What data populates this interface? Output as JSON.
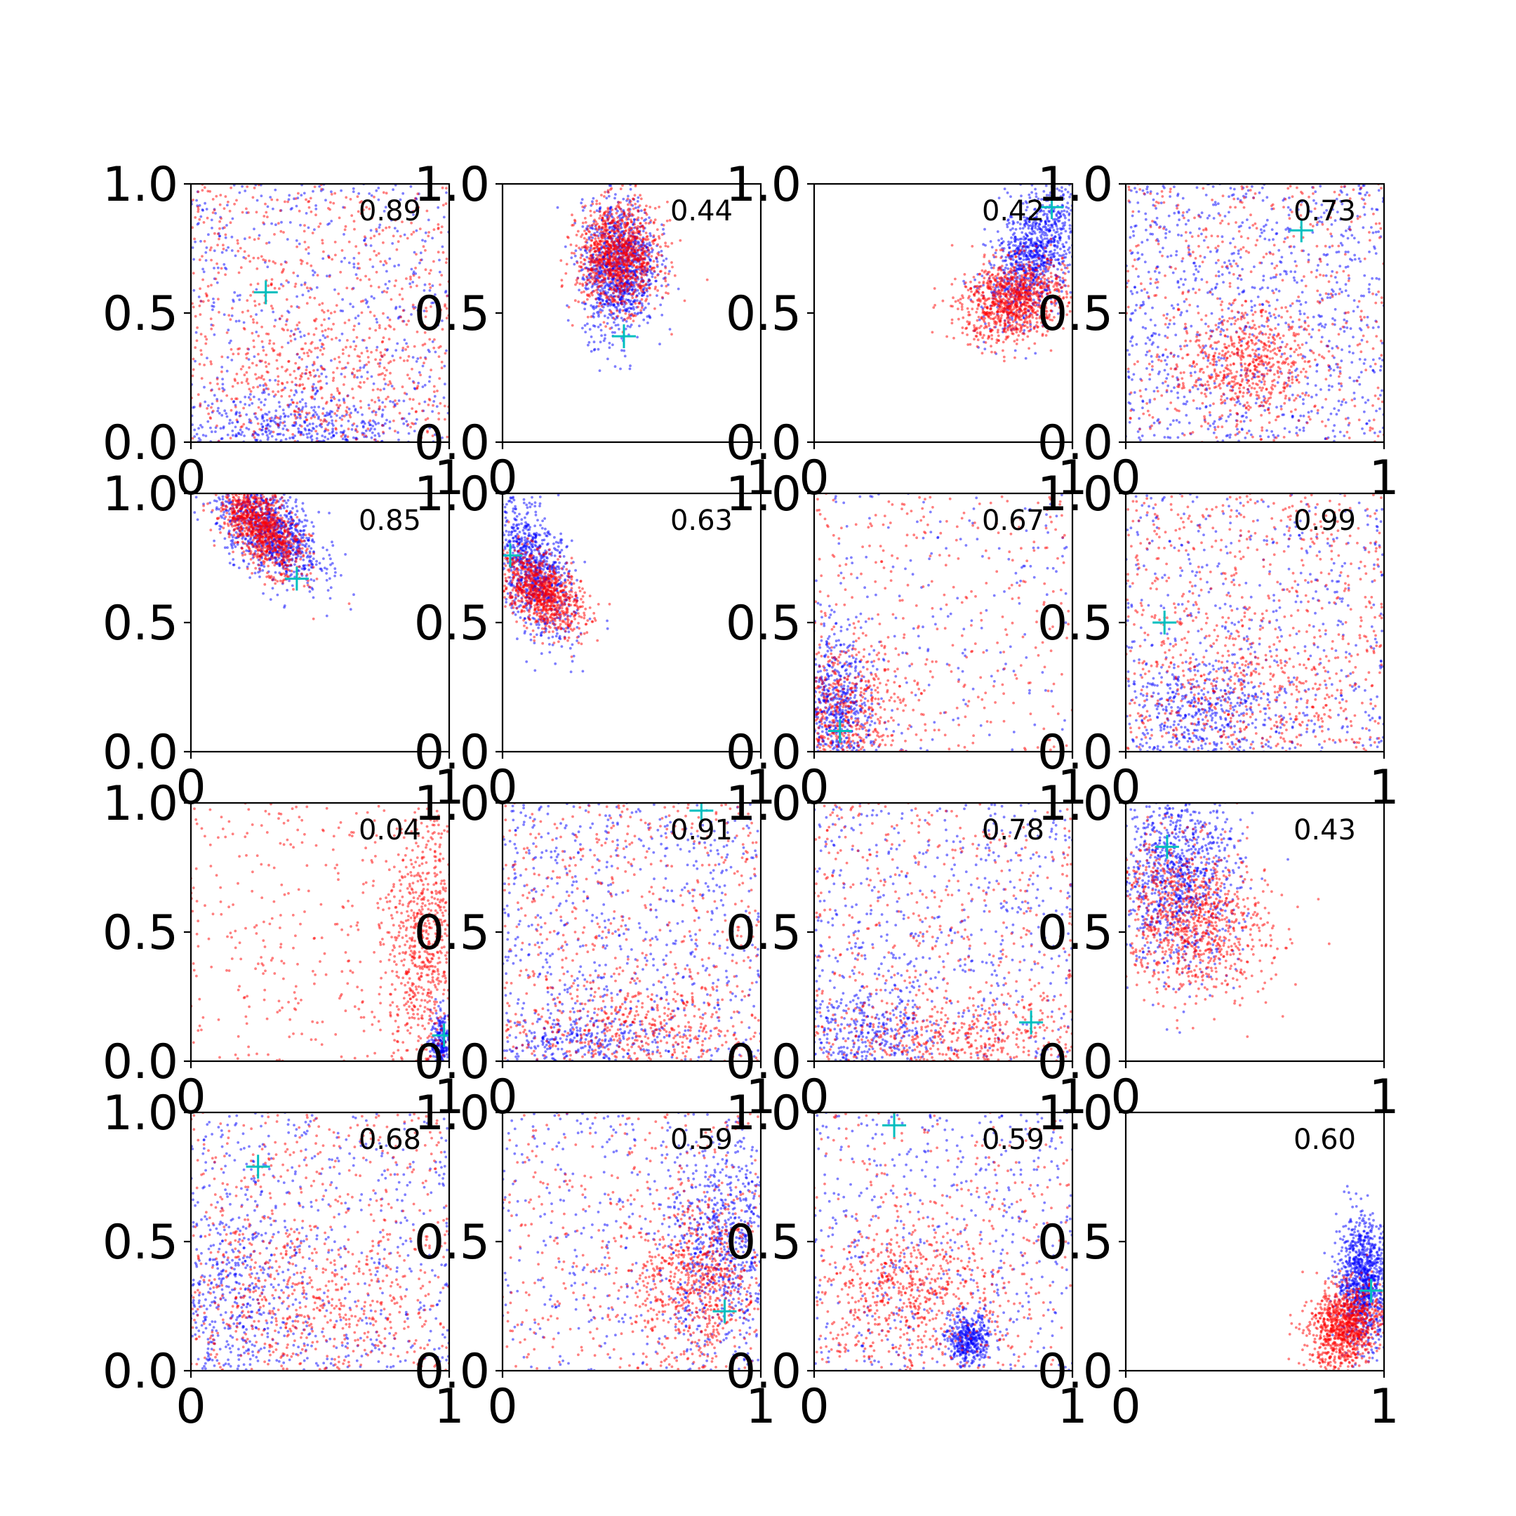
{
  "chart_data": {
    "type": "scatter",
    "layout": {
      "rows": 4,
      "cols": 4
    },
    "xlim": [
      0,
      1
    ],
    "ylim": [
      0,
      1
    ],
    "xticks": [
      "0",
      "1"
    ],
    "yticks": [
      "0.0",
      "0.5",
      "1.0"
    ],
    "colors": {
      "series_a": "#0000ff",
      "series_b": "#ff0000",
      "marker": "#00bfbf",
      "axes": "#000000"
    },
    "panels": [
      {
        "label": "0.89",
        "marker": [
          0.29,
          0.58
        ],
        "series_a": {
          "color": "#0000ff",
          "dist": "mixed",
          "cx": 0.42,
          "cy": 0.05,
          "sx": 0.22,
          "sy": 0.06,
          "rho": 0,
          "bg": 0.55,
          "n": 900
        },
        "series_b": {
          "color": "#ff0000",
          "dist": "mixed",
          "cx": 0.5,
          "cy": 0.25,
          "sx": 0.25,
          "sy": 0.15,
          "rho": 0,
          "bg": 0.7,
          "n": 900
        }
      },
      {
        "label": "0.44",
        "marker": [
          0.47,
          0.41
        ],
        "series_a": {
          "color": "#0000ff",
          "dist": "gauss",
          "cx": 0.45,
          "cy": 0.68,
          "sx": 0.07,
          "sy": 0.13,
          "rho": 0.1,
          "n": 1100
        },
        "series_b": {
          "color": "#ff0000",
          "dist": "gauss",
          "cx": 0.45,
          "cy": 0.72,
          "sx": 0.08,
          "sy": 0.1,
          "rho": 0,
          "n": 1100
        }
      },
      {
        "label": "0.42",
        "marker": [
          0.92,
          0.91
        ],
        "series_a": {
          "color": "#0000ff",
          "dist": "gauss",
          "cx": 0.85,
          "cy": 0.72,
          "sx": 0.09,
          "sy": 0.13,
          "rho": 0.5,
          "n": 1000
        },
        "series_b": {
          "color": "#ff0000",
          "dist": "gauss",
          "cx": 0.77,
          "cy": 0.55,
          "sx": 0.1,
          "sy": 0.08,
          "rho": 0.2,
          "n": 1000
        }
      },
      {
        "label": "0.73",
        "marker": [
          0.68,
          0.82
        ],
        "series_a": {
          "color": "#0000ff",
          "dist": "uniform",
          "n": 900
        },
        "series_b": {
          "color": "#ff0000",
          "dist": "mixed",
          "cx": 0.48,
          "cy": 0.3,
          "sx": 0.12,
          "sy": 0.1,
          "rho": 0,
          "bg": 0.5,
          "n": 1000
        }
      },
      {
        "label": "0.85",
        "marker": [
          0.41,
          0.67
        ],
        "series_a": {
          "color": "#0000ff",
          "dist": "gauss",
          "cx": 0.3,
          "cy": 0.86,
          "sx": 0.1,
          "sy": 0.1,
          "rho": -0.5,
          "n": 1000
        },
        "series_b": {
          "color": "#ff0000",
          "dist": "gauss",
          "cx": 0.27,
          "cy": 0.87,
          "sx": 0.08,
          "sy": 0.09,
          "rho": -0.6,
          "n": 1000
        }
      },
      {
        "label": "0.63",
        "marker": [
          0.03,
          0.76
        ],
        "series_a": {
          "color": "#0000ff",
          "dist": "gauss",
          "cx": 0.12,
          "cy": 0.7,
          "sx": 0.08,
          "sy": 0.13,
          "rho": -0.5,
          "n": 900
        },
        "series_b": {
          "color": "#ff0000",
          "dist": "gauss",
          "cx": 0.15,
          "cy": 0.62,
          "sx": 0.08,
          "sy": 0.08,
          "rho": -0.5,
          "n": 900
        }
      },
      {
        "label": "0.67",
        "marker": [
          0.1,
          0.08
        ],
        "series_a": {
          "color": "#0000ff",
          "dist": "mixed",
          "cx": 0.07,
          "cy": 0.15,
          "sx": 0.08,
          "sy": 0.15,
          "rho": 0,
          "bg": 0.2,
          "n": 900
        },
        "series_b": {
          "color": "#ff0000",
          "dist": "mixed",
          "cx": 0.1,
          "cy": 0.15,
          "sx": 0.12,
          "sy": 0.15,
          "rho": 0,
          "bg": 0.35,
          "n": 900
        }
      },
      {
        "label": "0.99",
        "marker": [
          0.15,
          0.5
        ],
        "series_a": {
          "color": "#0000ff",
          "dist": "mixed",
          "cx": 0.3,
          "cy": 0.15,
          "sx": 0.15,
          "sy": 0.1,
          "rho": 0,
          "bg": 0.55,
          "n": 900
        },
        "series_b": {
          "color": "#ff0000",
          "dist": "mixed",
          "cx": 0.5,
          "cy": 0.25,
          "sx": 0.2,
          "sy": 0.15,
          "rho": 0,
          "bg": 0.7,
          "n": 900
        }
      },
      {
        "label": "0.04",
        "marker": [
          0.98,
          0.1
        ],
        "series_a": {
          "color": "#0000ff",
          "dist": "gauss",
          "cx": 0.97,
          "cy": 0.07,
          "sx": 0.02,
          "sy": 0.06,
          "rho": 0,
          "n": 250
        },
        "series_b": {
          "color": "#ff0000",
          "dist": "mixed",
          "cx": 0.9,
          "cy": 0.45,
          "sx": 0.07,
          "sy": 0.25,
          "rho": 0,
          "bg": 0.35,
          "n": 1000
        }
      },
      {
        "label": "0.91",
        "marker": [
          0.77,
          0.97
        ],
        "series_a": {
          "color": "#0000ff",
          "dist": "mixed",
          "cx": 0.3,
          "cy": 0.08,
          "sx": 0.15,
          "sy": 0.06,
          "rho": 0,
          "bg": 0.7,
          "n": 900
        },
        "series_b": {
          "color": "#ff0000",
          "dist": "mixed",
          "cx": 0.55,
          "cy": 0.12,
          "sx": 0.2,
          "sy": 0.1,
          "rho": 0,
          "bg": 0.6,
          "n": 900
        }
      },
      {
        "label": "0.78",
        "marker": [
          0.84,
          0.15
        ],
        "series_a": {
          "color": "#0000ff",
          "dist": "mixed",
          "cx": 0.2,
          "cy": 0.1,
          "sx": 0.15,
          "sy": 0.1,
          "rho": 0,
          "bg": 0.6,
          "n": 900
        },
        "series_b": {
          "color": "#ff0000",
          "dist": "mixed",
          "cx": 0.55,
          "cy": 0.08,
          "sx": 0.25,
          "sy": 0.08,
          "rho": 0,
          "bg": 0.55,
          "n": 900
        }
      },
      {
        "label": "0.43",
        "marker": [
          0.16,
          0.83
        ],
        "series_a": {
          "color": "#0000ff",
          "dist": "gauss",
          "cx": 0.2,
          "cy": 0.72,
          "sx": 0.12,
          "sy": 0.18,
          "rho": 0,
          "n": 1000
        },
        "series_b": {
          "color": "#ff0000",
          "dist": "gauss",
          "cx": 0.25,
          "cy": 0.55,
          "sx": 0.15,
          "sy": 0.15,
          "rho": -0.2,
          "n": 1000
        }
      },
      {
        "label": "0.68",
        "marker": [
          0.26,
          0.79
        ],
        "series_a": {
          "color": "#0000ff",
          "dist": "mixed",
          "cx": 0.15,
          "cy": 0.3,
          "sx": 0.12,
          "sy": 0.2,
          "rho": 0,
          "bg": 0.55,
          "n": 900
        },
        "series_b": {
          "color": "#ff0000",
          "dist": "mixed",
          "cx": 0.45,
          "cy": 0.25,
          "sx": 0.25,
          "sy": 0.15,
          "rho": 0,
          "bg": 0.6,
          "n": 900
        }
      },
      {
        "label": "0.59",
        "marker": [
          0.86,
          0.23
        ],
        "series_a": {
          "color": "#0000ff",
          "dist": "mixed",
          "cx": 0.85,
          "cy": 0.5,
          "sx": 0.1,
          "sy": 0.2,
          "rho": 0,
          "bg": 0.4,
          "n": 1000
        },
        "series_b": {
          "color": "#ff0000",
          "dist": "mixed",
          "cx": 0.75,
          "cy": 0.35,
          "sx": 0.12,
          "sy": 0.15,
          "rho": 0,
          "bg": 0.35,
          "n": 1000
        }
      },
      {
        "label": "0.59",
        "marker": [
          0.31,
          0.95
        ],
        "series_a": {
          "color": "#0000ff",
          "dist": "mixed",
          "cx": 0.6,
          "cy": 0.12,
          "sx": 0.04,
          "sy": 0.05,
          "rho": 0,
          "bg": 0.55,
          "n": 900
        },
        "series_b": {
          "color": "#ff0000",
          "dist": "mixed",
          "cx": 0.35,
          "cy": 0.3,
          "sx": 0.18,
          "sy": 0.15,
          "rho": 0,
          "bg": 0.3,
          "n": 900
        }
      },
      {
        "label": "0.60",
        "marker": [
          0.95,
          0.31
        ],
        "series_a": {
          "color": "#0000ff",
          "dist": "gauss",
          "cx": 0.92,
          "cy": 0.35,
          "sx": 0.05,
          "sy": 0.12,
          "rho": 0,
          "n": 1000
        },
        "series_b": {
          "color": "#ff0000",
          "dist": "gauss",
          "cx": 0.85,
          "cy": 0.17,
          "sx": 0.07,
          "sy": 0.08,
          "rho": 0.2,
          "n": 1000
        }
      }
    ]
  }
}
